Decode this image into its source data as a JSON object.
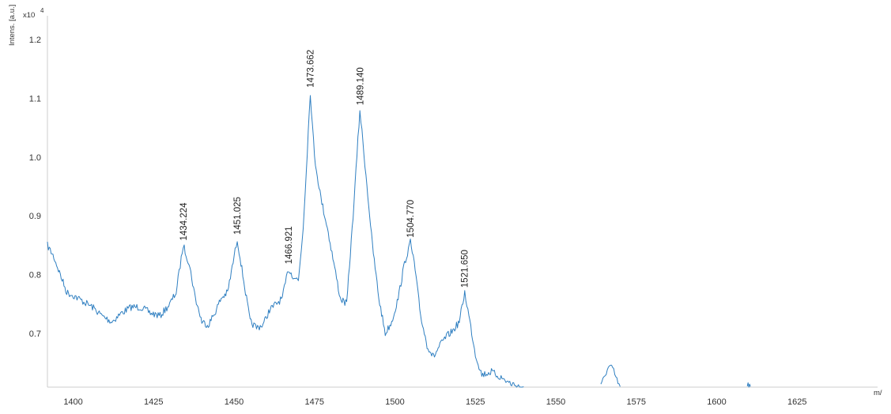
{
  "chart_data": {
    "type": "line",
    "title": "",
    "ylabel": "Intens. [a.u.]",
    "ylabel_multiplier": "x10",
    "ylabel_exponent": "4",
    "xlabel": "m/",
    "xlim": [
      1392,
      1650
    ],
    "ylim": [
      0.609,
      1.24
    ],
    "x_ticks": [
      1400,
      1425,
      1450,
      1475,
      1500,
      1525,
      1550,
      1575,
      1600,
      1625
    ],
    "x_tick_labels": [
      "1400",
      "1425",
      "1450",
      "1475",
      "1500",
      "1525",
      "1550",
      "1575",
      "1600",
      "1625"
    ],
    "y_ticks": [
      0.7,
      0.8,
      0.9,
      1.0,
      1.1,
      1.2
    ],
    "y_tick_labels": [
      "0.7",
      "0.8",
      "0.9",
      "1.0",
      "1.1",
      "1.2"
    ],
    "grid": false,
    "line_color": "#2f7fc1",
    "series": [
      {
        "x": [
          1392,
          1394,
          1396,
          1398,
          1400,
          1403,
          1406,
          1409,
          1412,
          1415,
          1418,
          1421,
          1424,
          1427,
          1430,
          1432,
          1434.2,
          1436,
          1438,
          1440,
          1442,
          1444,
          1446,
          1448,
          1450,
          1451,
          1453,
          1455,
          1457,
          1459,
          1461,
          1463,
          1465,
          1466.9,
          1468,
          1470,
          1471.5,
          1473.7,
          1475,
          1477,
          1479,
          1481,
          1483,
          1485,
          1487,
          1489.1,
          1491,
          1493,
          1495,
          1497,
          1499,
          1501,
          1503,
          1504.8,
          1506,
          1508,
          1510,
          1512,
          1514,
          1516,
          1518,
          1520,
          1521.7,
          1523,
          1525,
          1527,
          1530,
          1533,
          1536,
          1539,
          1540
        ],
        "y": [
          0.85,
          0.83,
          0.8,
          0.77,
          0.765,
          0.755,
          0.745,
          0.73,
          0.72,
          0.735,
          0.745,
          0.745,
          0.735,
          0.73,
          0.75,
          0.77,
          0.85,
          0.82,
          0.76,
          0.72,
          0.715,
          0.735,
          0.76,
          0.77,
          0.83,
          0.86,
          0.79,
          0.72,
          0.71,
          0.715,
          0.74,
          0.75,
          0.76,
          0.81,
          0.8,
          0.79,
          0.88,
          1.11,
          1.0,
          0.93,
          0.88,
          0.82,
          0.76,
          0.75,
          0.9,
          1.08,
          0.97,
          0.85,
          0.76,
          0.7,
          0.72,
          0.76,
          0.82,
          0.855,
          0.82,
          0.73,
          0.68,
          0.66,
          0.68,
          0.695,
          0.705,
          0.72,
          0.77,
          0.73,
          0.665,
          0.63,
          0.635,
          0.625,
          0.615,
          0.61,
          0.61
        ]
      },
      {
        "x": [
          1564,
          1565,
          1566,
          1567,
          1568,
          1569,
          1570
        ],
        "y": [
          0.61,
          0.625,
          0.64,
          0.645,
          0.635,
          0.62,
          0.61
        ]
      },
      {
        "x": [
          1609.5,
          1610,
          1610.5
        ],
        "y": [
          0.61,
          0.613,
          0.61
        ]
      }
    ],
    "annotations": [
      {
        "x": 1434.224,
        "y": 0.85,
        "label": "1434.224"
      },
      {
        "x": 1451.025,
        "y": 0.86,
        "label": "1451.025"
      },
      {
        "x": 1466.921,
        "y": 0.81,
        "label": "1466.921"
      },
      {
        "x": 1473.662,
        "y": 1.11,
        "label": "1473.662"
      },
      {
        "x": 1489.14,
        "y": 1.08,
        "label": "1489.140"
      },
      {
        "x": 1504.77,
        "y": 0.855,
        "label": "1504.770"
      },
      {
        "x": 1521.65,
        "y": 0.77,
        "label": "1521.650"
      }
    ]
  }
}
